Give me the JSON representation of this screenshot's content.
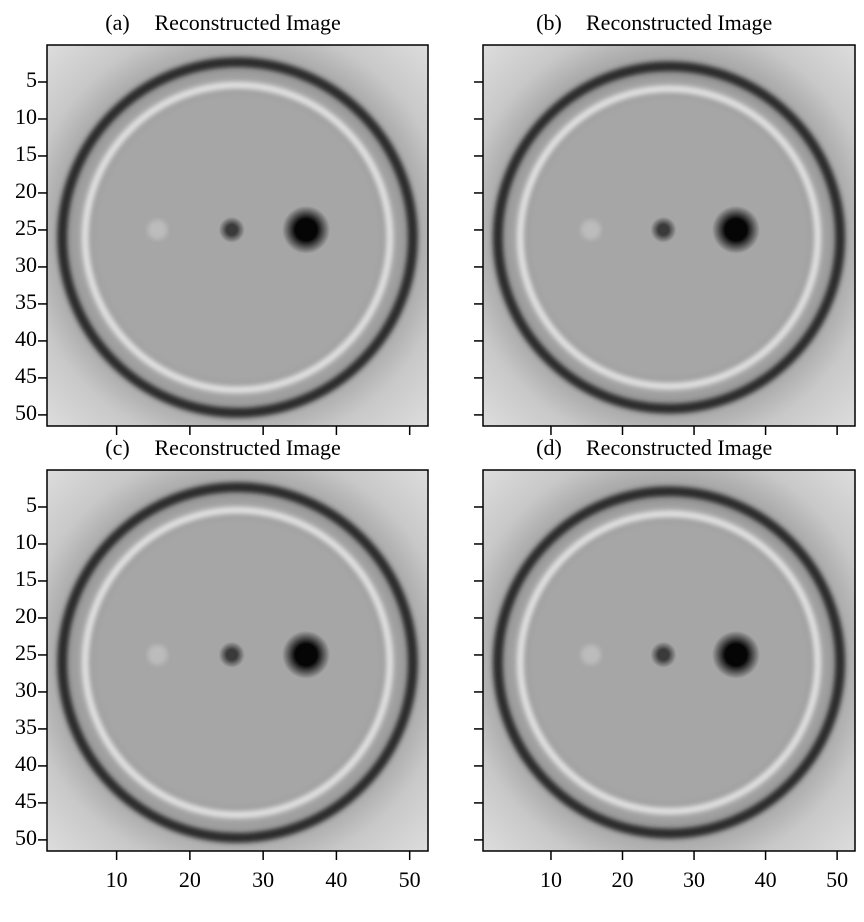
{
  "chart_data": [
    {
      "type": "image",
      "label": "(a)",
      "title": "Reconstructed Image",
      "xlim": [
        0.5,
        52.5
      ],
      "ylim": [
        51.5,
        0
      ],
      "xticks": [
        10,
        20,
        30,
        40,
        50
      ],
      "yticks": [
        5,
        10,
        15,
        20,
        25,
        30,
        35,
        40,
        45,
        50
      ],
      "xtick_labels": false,
      "ytick_labels": true
    },
    {
      "type": "image",
      "label": "(b)",
      "title": "Reconstructed Image",
      "xlim": [
        0.5,
        52.5
      ],
      "ylim": [
        51.5,
        0
      ],
      "xticks": [
        10,
        20,
        30,
        40,
        50
      ],
      "yticks": [
        5,
        10,
        15,
        20,
        25,
        30,
        35,
        40,
        45,
        50
      ],
      "xtick_labels": false,
      "ytick_labels": false
    },
    {
      "type": "image",
      "label": "(c)",
      "title": "Reconstructed Image",
      "xlim": [
        0.5,
        52.5
      ],
      "ylim": [
        51.5,
        0
      ],
      "xticks": [
        10,
        20,
        30,
        40,
        50
      ],
      "yticks": [
        5,
        10,
        15,
        20,
        25,
        30,
        35,
        40,
        45,
        50
      ],
      "xtick_labels": true,
      "ytick_labels": true
    },
    {
      "type": "image",
      "label": "(d)",
      "title": "Reconstructed Image",
      "xlim": [
        0.5,
        52.5
      ],
      "ylim": [
        51.5,
        0
      ],
      "xticks": [
        10,
        20,
        30,
        40,
        50
      ],
      "yticks": [
        5,
        10,
        15,
        20,
        25,
        30,
        35,
        40,
        45,
        50
      ],
      "xtick_labels": true,
      "ytick_labels": false
    }
  ]
}
